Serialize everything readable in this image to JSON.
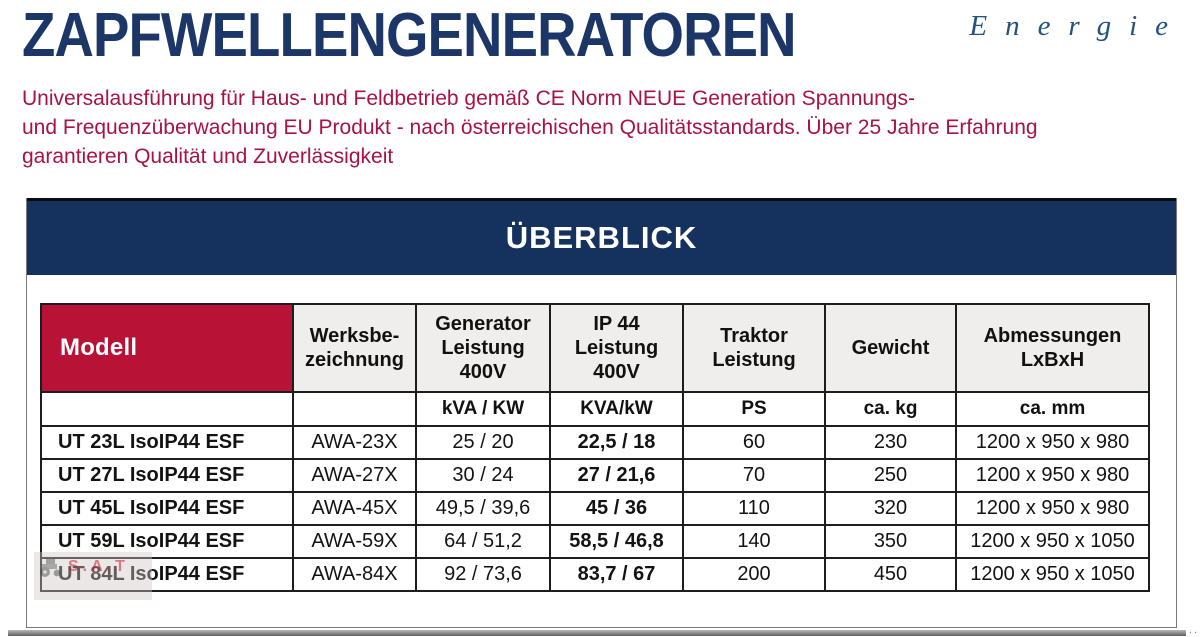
{
  "header": {
    "title": "ZAPFWELLENGENERATOREN",
    "brand": "Energie",
    "intro_lines": [
      "Universalausführung für Haus- und Feldbetrieb gemäß CE Norm NEUE Generation Spannungs-",
      "und Frequenzüberwachung EU Produkt - nach österreichischen Qualitätsstandards. Über 25 Jahre Erfahrung",
      "garantieren Qualität und Zuverlässigkeit"
    ]
  },
  "overview": {
    "banner": "ÜBERBLICK"
  },
  "table": {
    "columns": [
      {
        "id": "modell",
        "label": "Modell",
        "unit": ""
      },
      {
        "id": "werksbezeichnung",
        "label": "Werksbe-\nzeichnung",
        "unit": ""
      },
      {
        "id": "generator-leistung-400v",
        "label": "Generator\nLeistung\n400V",
        "unit": "kVA / KW"
      },
      {
        "id": "ip44-leistung-400v",
        "label": "IP 44\nLeistung\n400V",
        "unit": "KVA/kW"
      },
      {
        "id": "traktor-leistung",
        "label": "Traktor\nLeistung",
        "unit": "PS"
      },
      {
        "id": "gewicht",
        "label": "Gewicht",
        "unit": "ca. kg"
      },
      {
        "id": "abmessungen-lxbxh",
        "label": "Abmessungen\nLxBxH",
        "unit": "ca. mm"
      }
    ],
    "rows": [
      [
        "UT 23L IsoIP44 ESF",
        "AWA-23X",
        "25 / 20",
        "22,5 / 18",
        "60",
        "230",
        "1200 x 950 x 980"
      ],
      [
        "UT 27L IsoIP44 ESF",
        "AWA-27X",
        "30 / 24",
        "27 / 21,6",
        "70",
        "250",
        "1200 x 950 x 980"
      ],
      [
        "UT 45L IsoIP44 ESF",
        "AWA-45X",
        "49,5 / 39,6",
        "45 / 36",
        "110",
        "320",
        "1200 x 950 x 980"
      ],
      [
        "UT 59L IsoIP44 ESF",
        "AWA-59X",
        "64 / 51,2",
        "58,5 / 46,8",
        "140",
        "350",
        "1200 x 950 x 1050"
      ],
      [
        "UT 84L IsoIP44 ESF",
        "AWA-84X",
        "92 / 73,6",
        "83,7 / 67",
        "200",
        "450",
        "1200 x 950 x 1050"
      ]
    ]
  },
  "watermark": {
    "text": "S.A.T"
  },
  "artifacts": {
    "dots": ".."
  },
  "colors": {
    "title_navy": "#1c3667",
    "banner_navy": "#15325f",
    "model_header_red": "#b91237",
    "intro_red": "#a81245",
    "brand_blue": "#23527c",
    "header_cell_bg": "#f0eeec",
    "table_border": "#1d1d1d"
  }
}
